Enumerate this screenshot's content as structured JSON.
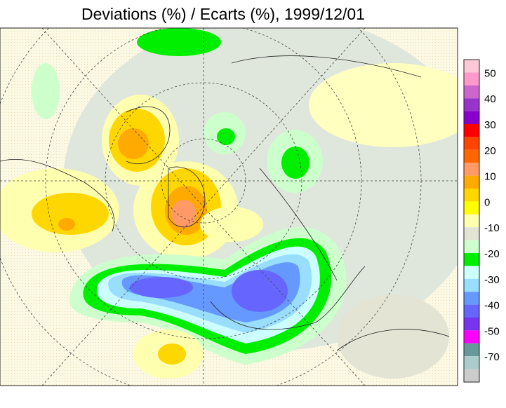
{
  "title": "Deviations (%) / Ecarts (%), 1999/12/01",
  "colorbar": {
    "colors": [
      "#ffc8d8",
      "#ff99cc",
      "#cc66cc",
      "#9933cc",
      "#8800cc",
      "#ff0000",
      "#ff4400",
      "#ff6600",
      "#ff9966",
      "#ffaa00",
      "#ffd700",
      "#ffff00",
      "#ffffb0",
      "#e4e4d4",
      "#ccffcc",
      "#00ee00",
      "#ccffff",
      "#99ddff",
      "#6699ff",
      "#6666ff",
      "#7733ee",
      "#ff00ff",
      "#669999",
      "#aacccc",
      "#cccccc"
    ],
    "ticks": [
      50,
      40,
      30,
      20,
      10,
      0,
      -10,
      -20,
      -30,
      -40,
      -50,
      -70
    ]
  }
}
